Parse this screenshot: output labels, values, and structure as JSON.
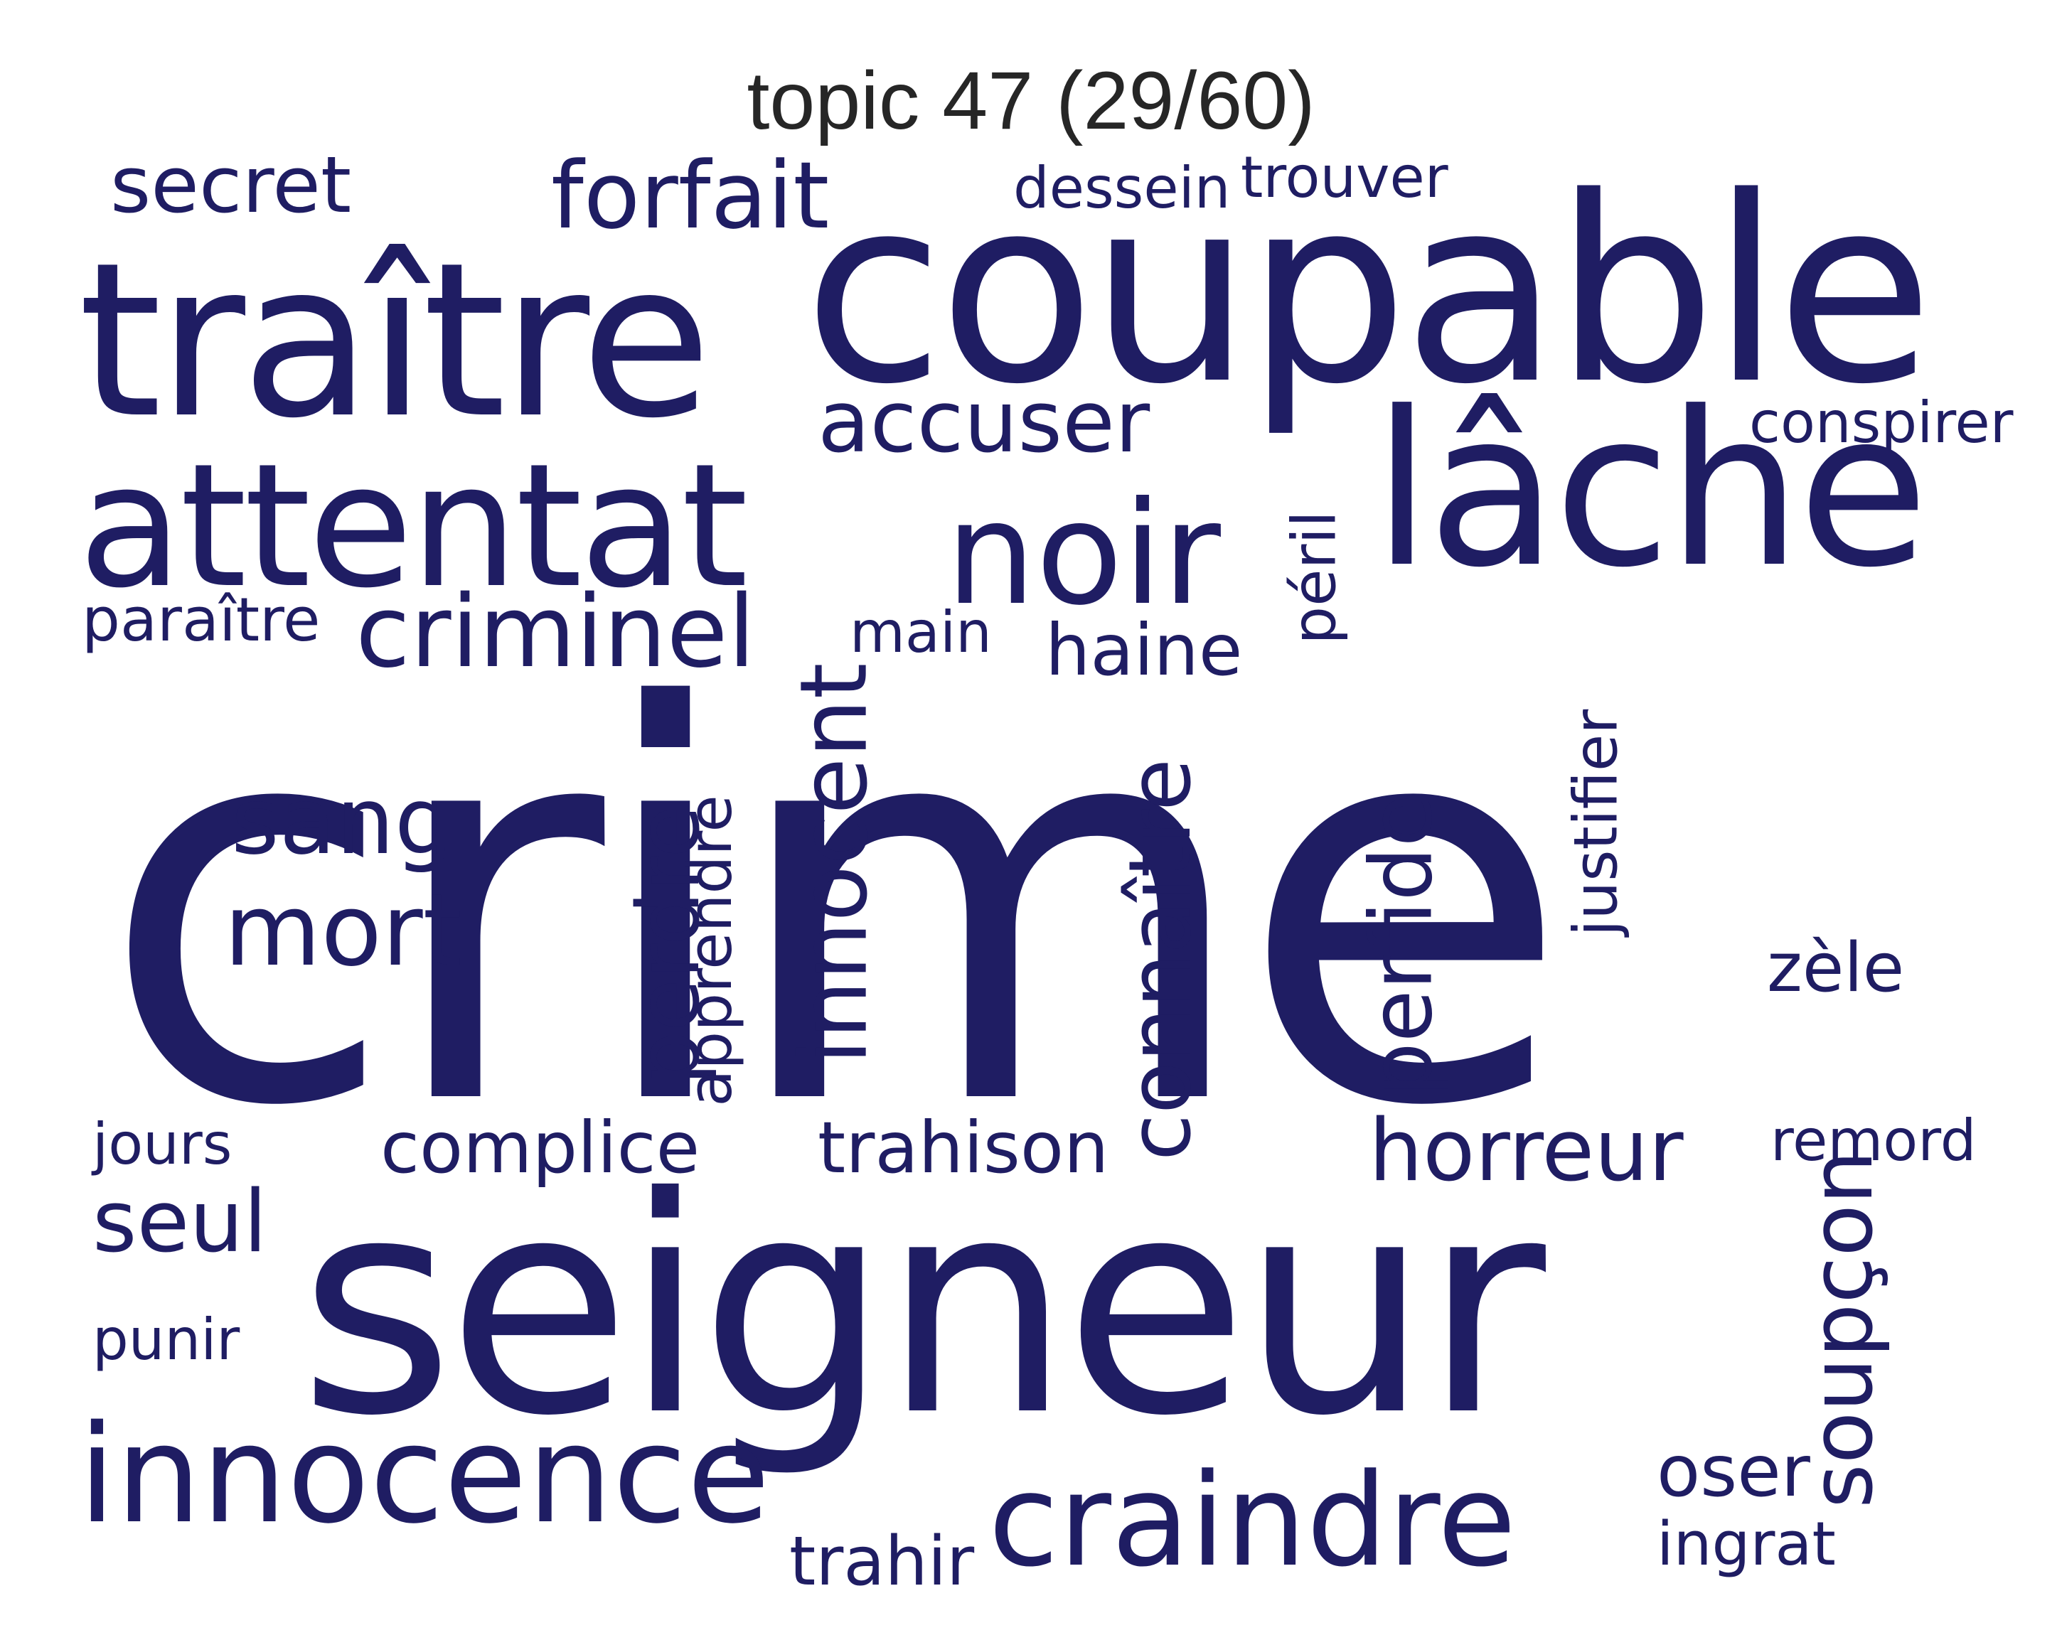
{
  "title": "topic 47 (29/60)",
  "word_color": "#1f1d63",
  "title_color": "#262626",
  "words": {
    "crime": "crime",
    "seigneur": "seigneur",
    "coupable": "coupable",
    "traitre": "traître",
    "lache": "lâche",
    "attentat": "attentat",
    "noir": "noir",
    "innocence": "innocence",
    "craindre": "craindre",
    "criminel": "criminel",
    "mort": "mort",
    "sang": "sang",
    "forfait": "forfait",
    "accuser": "accuser",
    "horreur": "horreur",
    "seul": "seul",
    "secret": "secret",
    "haine": "haine",
    "trahison": "trahison",
    "complice": "complice",
    "oser": "oser",
    "zele": "zèle",
    "trahir": "trahir",
    "ingrat": "ingrat",
    "paraitre": "paraître",
    "remord": "remord",
    "conspirer": "conspirer",
    "punir": "punir",
    "jours": "jours",
    "main": "main",
    "dessein": "dessein",
    "trouver": "trouver",
    "innocent": "innocent",
    "connaitre": "connaître",
    "perfide": "perfide",
    "perdre": "perdre",
    "apprendre": "apprendre",
    "justifier": "justifier",
    "peril": "péril",
    "soupcon": "soupçon"
  }
}
